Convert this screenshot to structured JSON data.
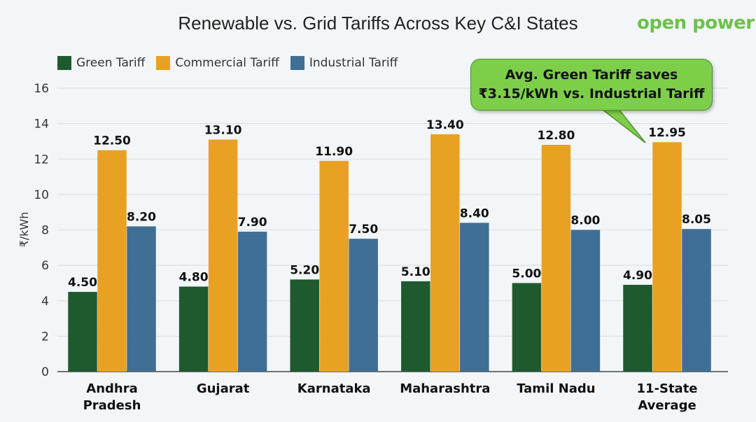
{
  "logo": "open power",
  "chart_data": {
    "type": "bar",
    "title": "Renewable vs. Grid Tariffs Across Key C&I States",
    "xlabel": "",
    "ylabel": "₹/kWh",
    "ylim": [
      0,
      16
    ],
    "yticks": [
      0,
      2,
      4,
      6,
      8,
      10,
      12,
      14,
      16
    ],
    "grid": true,
    "legend_position": "top-left",
    "categories": [
      [
        "Andhra",
        "Pradesh"
      ],
      [
        "Gujarat"
      ],
      [
        "Karnataka"
      ],
      [
        "Maharashtra"
      ],
      [
        "Tamil Nadu"
      ],
      [
        "11-State",
        "Average"
      ]
    ],
    "series": [
      {
        "name": "Green Tariff",
        "color": "#1f5a2f",
        "values": [
          4.5,
          4.8,
          5.2,
          5.1,
          5.0,
          4.9
        ]
      },
      {
        "name": "Commercial Tariff",
        "color": "#e9a124",
        "values": [
          12.5,
          13.1,
          11.9,
          13.4,
          12.8,
          12.95
        ]
      },
      {
        "name": "Industrial Tariff",
        "color": "#406f95",
        "values": [
          8.2,
          7.9,
          7.5,
          8.4,
          8.0,
          8.05
        ]
      }
    ],
    "annotation": {
      "lines": [
        "Avg. Green Tariff saves",
        "₹3.15/kWh vs. Industrial Tariff"
      ],
      "color": "#7dcf4a"
    }
  }
}
